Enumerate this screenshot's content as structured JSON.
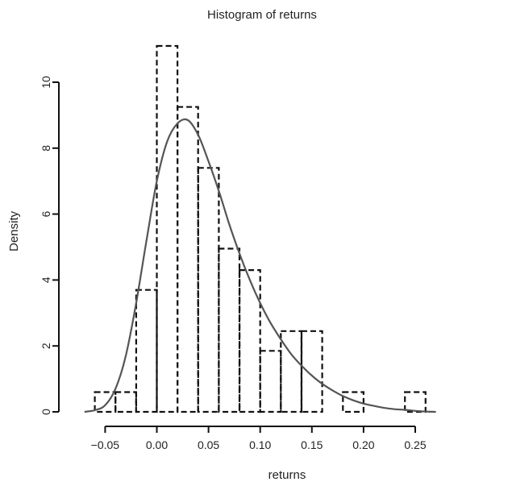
{
  "chart_data": {
    "type": "histogram",
    "title": "Histogram of returns",
    "xlabel": "returns",
    "ylabel": "Density",
    "xlim": [
      -0.06,
      0.26
    ],
    "ylim": [
      0,
      10
    ],
    "x_ticks": [
      -0.05,
      0.0,
      0.05,
      0.1,
      0.15,
      0.2,
      0.25
    ],
    "x_tick_labels": [
      "−0.05",
      "0.00",
      "0.05",
      "0.10",
      "0.15",
      "0.20",
      "0.25"
    ],
    "y_ticks": [
      0,
      2,
      4,
      6,
      8,
      10
    ],
    "y_tick_labels": [
      "0",
      "2",
      "4",
      "6",
      "8",
      "10"
    ],
    "grid": false,
    "bins": [
      {
        "x0": -0.06,
        "x1": -0.04,
        "density": 0.6
      },
      {
        "x0": -0.04,
        "x1": -0.02,
        "density": 0.6
      },
      {
        "x0": -0.02,
        "x1": 0.0,
        "density": 3.7
      },
      {
        "x0": 0.0,
        "x1": 0.02,
        "density": 11.1
      },
      {
        "x0": 0.02,
        "x1": 0.04,
        "density": 9.25
      },
      {
        "x0": 0.04,
        "x1": 0.06,
        "density": 7.4
      },
      {
        "x0": 0.06,
        "x1": 0.08,
        "density": 4.95
      },
      {
        "x0": 0.08,
        "x1": 0.1,
        "density": 4.3
      },
      {
        "x0": 0.1,
        "x1": 0.12,
        "density": 1.85
      },
      {
        "x0": 0.12,
        "x1": 0.14,
        "density": 2.45
      },
      {
        "x0": 0.14,
        "x1": 0.16,
        "density": 2.45
      },
      {
        "x0": 0.16,
        "x1": 0.18,
        "density": 0.0
      },
      {
        "x0": 0.18,
        "x1": 0.2,
        "density": 0.6
      },
      {
        "x0": 0.2,
        "x1": 0.22,
        "density": 0.0
      },
      {
        "x0": 0.22,
        "x1": 0.24,
        "density": 0.0
      },
      {
        "x0": 0.24,
        "x1": 0.26,
        "density": 0.6
      }
    ],
    "density_curve": {
      "x": [
        -0.07,
        -0.06,
        -0.05,
        -0.04,
        -0.03,
        -0.02,
        -0.01,
        0.0,
        0.01,
        0.02,
        0.03,
        0.04,
        0.05,
        0.06,
        0.07,
        0.08,
        0.09,
        0.1,
        0.11,
        0.12,
        0.13,
        0.14,
        0.15,
        0.16,
        0.17,
        0.18,
        0.19,
        0.2,
        0.21,
        0.22,
        0.23,
        0.24,
        0.25,
        0.26,
        0.27
      ],
      "y": [
        0.0,
        0.05,
        0.2,
        0.7,
        1.7,
        3.3,
        5.2,
        7.0,
        8.2,
        8.75,
        8.85,
        8.4,
        7.6,
        6.7,
        5.7,
        4.8,
        4.0,
        3.3,
        2.7,
        2.2,
        1.75,
        1.4,
        1.1,
        0.85,
        0.65,
        0.48,
        0.35,
        0.25,
        0.18,
        0.12,
        0.08,
        0.06,
        0.03,
        0.01,
        0.0
      ]
    }
  }
}
